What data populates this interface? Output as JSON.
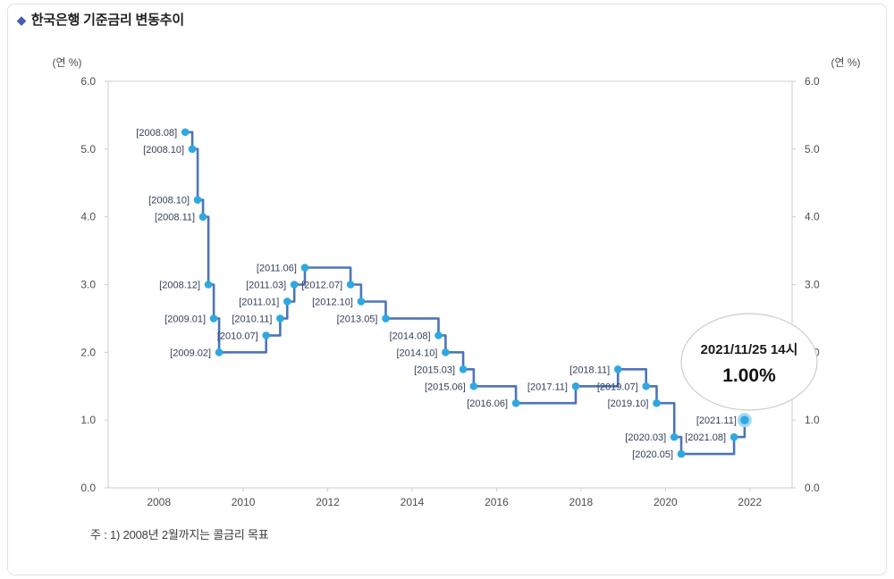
{
  "header": {
    "bullet": "◆",
    "title": "한국은행 기준금리 변동추이"
  },
  "footnote": {
    "text": "주 : 1) 2008년 2월까지는 콜금리 목표"
  },
  "chart_data": {
    "type": "line",
    "subtype": "step",
    "title": "한국은행 기준금리 변동추이",
    "unit_label_left": "(연 %)",
    "unit_label_right": "(연 %)",
    "ylim": [
      0.0,
      6.0
    ],
    "yticks": [
      0.0,
      1.0,
      2.0,
      3.0,
      4.0,
      5.0,
      6.0
    ],
    "xlim": [
      2006.8,
      2023.0
    ],
    "xticks": [
      2008,
      2010,
      2012,
      2014,
      2016,
      2018,
      2020,
      2022
    ],
    "grid": false,
    "points": [
      {
        "label": "[2008.08]",
        "year": 2008,
        "month": 8,
        "rate": 5.25
      },
      {
        "label": "[2008.10]",
        "year": 2008,
        "month": 10,
        "rate": 5.0
      },
      {
        "label": "[2008.10]",
        "year": 2008,
        "month": 10,
        "rate": 4.25
      },
      {
        "label": "[2008.11]",
        "year": 2008,
        "month": 11,
        "rate": 4.0
      },
      {
        "label": "[2008.12]",
        "year": 2008,
        "month": 12,
        "rate": 3.0
      },
      {
        "label": "[2009.01]",
        "year": 2009,
        "month": 1,
        "rate": 2.5
      },
      {
        "label": "[2009.02]",
        "year": 2009,
        "month": 2,
        "rate": 2.0
      },
      {
        "label": "[2010.07]",
        "year": 2010,
        "month": 7,
        "rate": 2.25
      },
      {
        "label": "[2010.11]",
        "year": 2010,
        "month": 11,
        "rate": 2.5
      },
      {
        "label": "[2011.01]",
        "year": 2011,
        "month": 1,
        "rate": 2.75
      },
      {
        "label": "[2011.03]",
        "year": 2011,
        "month": 3,
        "rate": 3.0
      },
      {
        "label": "[2011.06]",
        "year": 2011,
        "month": 6,
        "rate": 3.25
      },
      {
        "label": "[2012.07]",
        "year": 2012,
        "month": 7,
        "rate": 3.0
      },
      {
        "label": "[2012.10]",
        "year": 2012,
        "month": 10,
        "rate": 2.75
      },
      {
        "label": "[2013.05]",
        "year": 2013,
        "month": 5,
        "rate": 2.5
      },
      {
        "label": "[2014.08]",
        "year": 2014,
        "month": 8,
        "rate": 2.25
      },
      {
        "label": "[2014.10]",
        "year": 2014,
        "month": 10,
        "rate": 2.0
      },
      {
        "label": "[2015.03]",
        "year": 2015,
        "month": 3,
        "rate": 1.75
      },
      {
        "label": "[2015.06]",
        "year": 2015,
        "month": 6,
        "rate": 1.5
      },
      {
        "label": "[2016.06]",
        "year": 2016,
        "month": 6,
        "rate": 1.25
      },
      {
        "label": "[2017.11]",
        "year": 2017,
        "month": 11,
        "rate": 1.5
      },
      {
        "label": "[2018.11]",
        "year": 2018,
        "month": 11,
        "rate": 1.75
      },
      {
        "label": "[2019.07]",
        "year": 2019,
        "month": 7,
        "rate": 1.5
      },
      {
        "label": "[2019.10]",
        "year": 2019,
        "month": 10,
        "rate": 1.25
      },
      {
        "label": "[2020.03]",
        "year": 2020,
        "month": 3,
        "rate": 0.75
      },
      {
        "label": "[2020.05]",
        "year": 2020,
        "month": 5,
        "rate": 0.5
      },
      {
        "label": "[2021.08]",
        "year": 2021,
        "month": 8,
        "rate": 0.75
      },
      {
        "label": "[2021.11]",
        "year": 2021,
        "month": 11,
        "rate": 1.0,
        "highlight": true
      }
    ],
    "callout": {
      "line1": "2021/11/25 14시",
      "line2": "1.00%"
    },
    "colors": {
      "line": "#4d74b8",
      "marker": "#2ea9e0",
      "marker_ring": "#a6d7f1",
      "label": "#333f58",
      "axis_text": "#4d4d4d",
      "border": "#cccccc",
      "callout_border": "#cccccc"
    }
  }
}
